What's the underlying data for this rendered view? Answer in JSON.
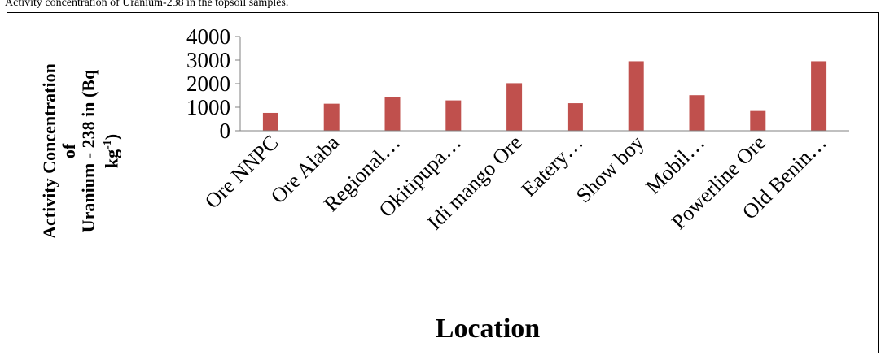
{
  "page": {
    "header_text": "Activity concentration of Uranium-238 in the topsoil samples."
  },
  "chart_data": {
    "type": "bar",
    "categories": [
      "Ore NNPC",
      "Ore Alaba",
      "Regional…",
      "Okitipupa…",
      "Idi mango Ore",
      "Eatery…",
      "Show boy",
      "Mobil…",
      "Powerline Ore",
      "Old Benin…"
    ],
    "values": [
      760,
      1150,
      1440,
      1290,
      2020,
      1170,
      2950,
      1510,
      840,
      2950
    ],
    "ylim": [
      0,
      4000
    ],
    "yticks": [
      0,
      1000,
      2000,
      3000,
      4000
    ],
    "ytick_labels": [
      "0",
      "1000",
      "2000",
      "3000",
      "4000"
    ],
    "ylabel_lines": [
      "Activity Concentration",
      "of",
      "Uranium - 238 in (Bq",
      "kg",
      "-1",
      ")"
    ],
    "xlabel": "Location",
    "bar_color": "#C0504D",
    "axis_color": "#808080",
    "grid": false,
    "legend": "none"
  }
}
